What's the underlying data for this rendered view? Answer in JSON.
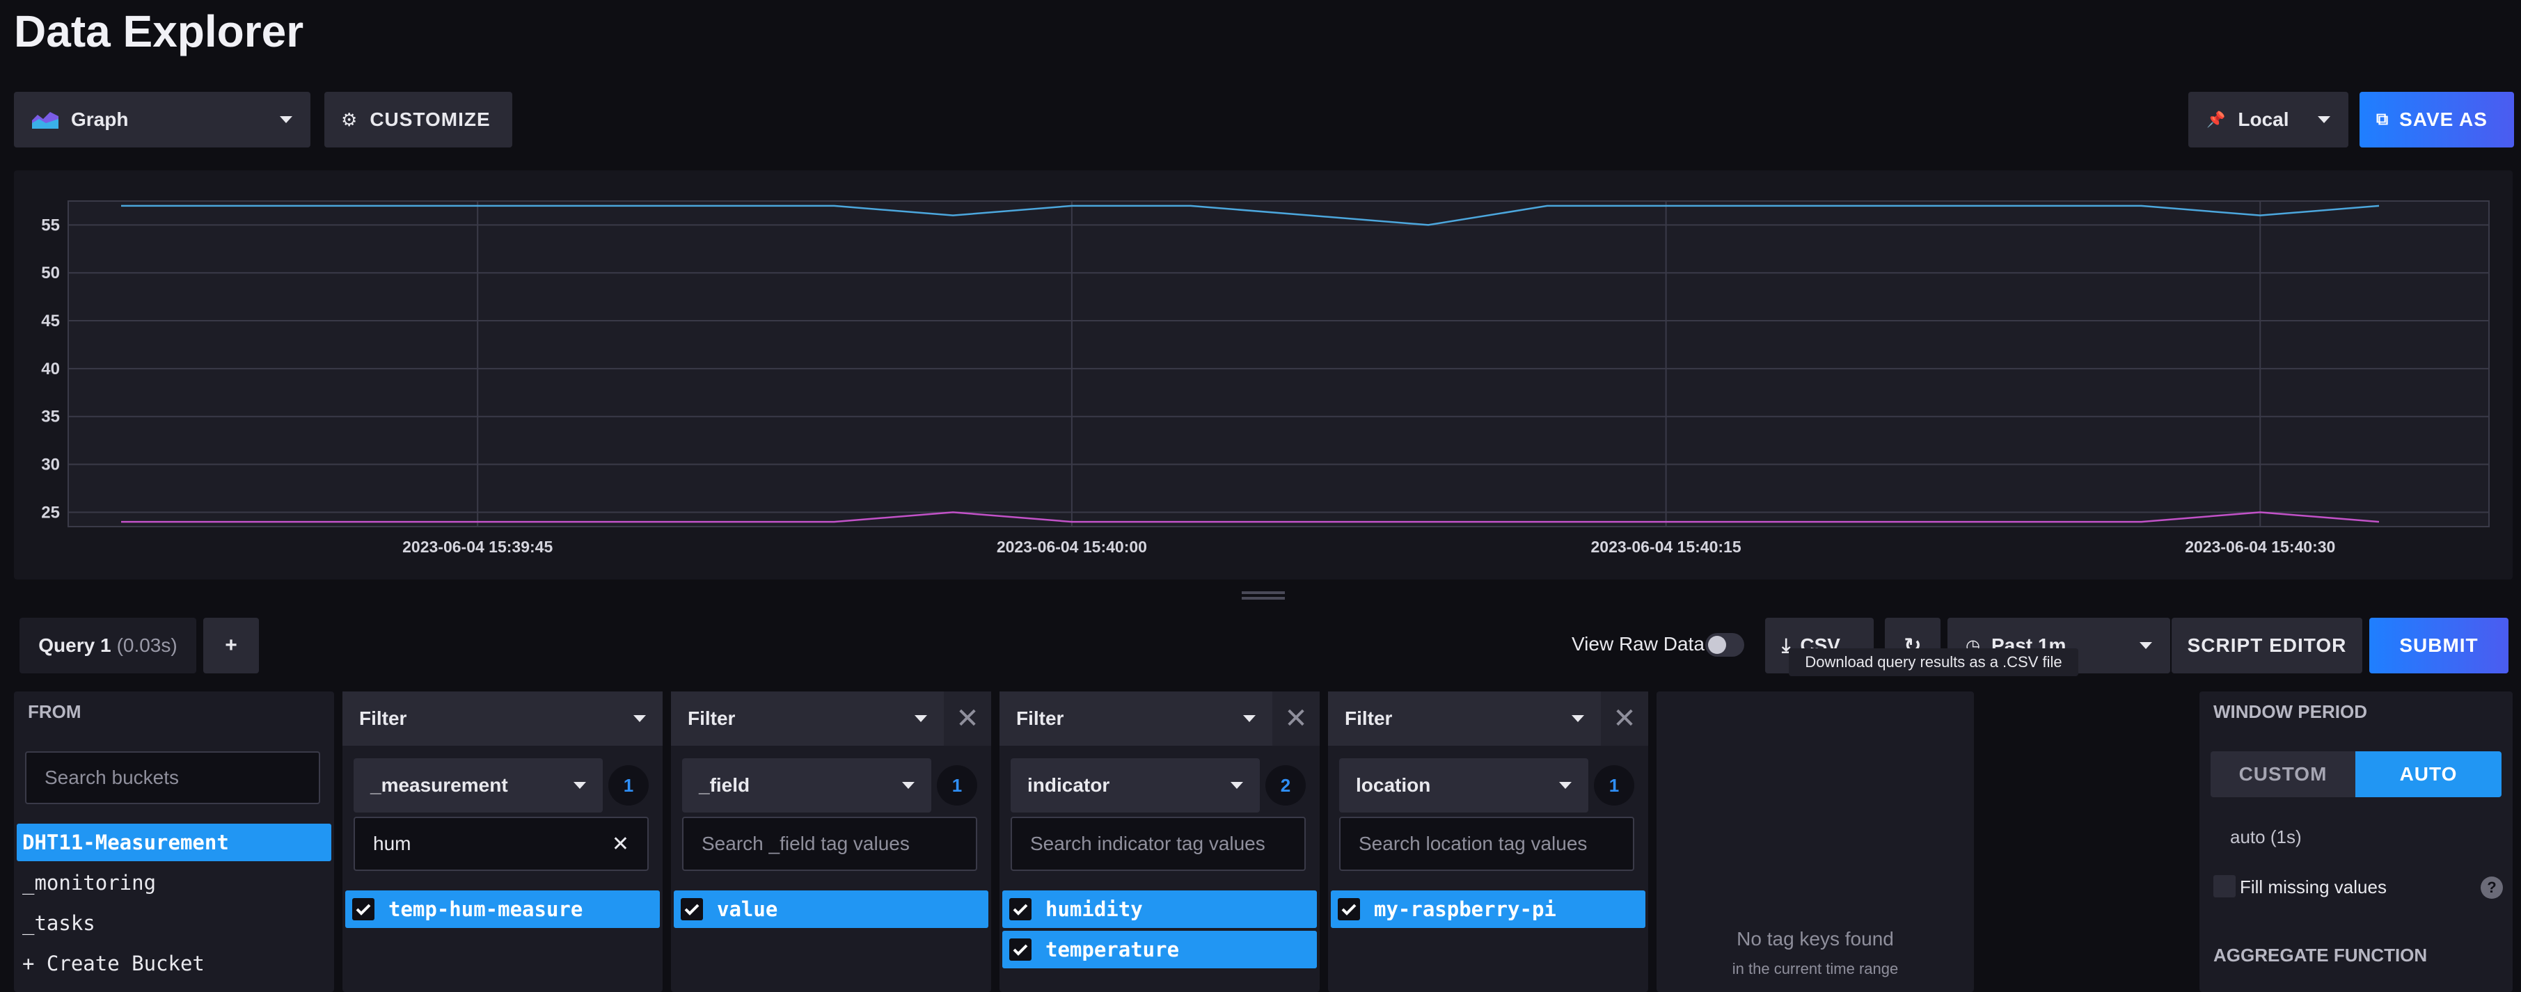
{
  "page": {
    "title": "Data Explorer"
  },
  "toolbar": {
    "view_type": "Graph",
    "customize_label": "CUSTOMIZE",
    "timezone": "Local",
    "save_as_label": "SAVE AS"
  },
  "chart_data": {
    "type": "line",
    "x": [
      "15:39:36",
      "15:39:39",
      "15:39:42",
      "15:39:45",
      "15:39:48",
      "15:39:51",
      "15:39:54",
      "15:39:57",
      "15:40:00",
      "15:40:03",
      "15:40:06",
      "15:40:09",
      "15:40:12",
      "15:40:15",
      "15:40:18",
      "15:40:21",
      "15:40:24",
      "15:40:27",
      "15:40:30",
      "15:40:33"
    ],
    "series": [
      {
        "color": "#4ca7dd",
        "values": [
          57,
          57,
          57,
          57,
          57,
          57,
          57,
          56,
          57,
          57,
          56,
          55,
          57,
          57,
          57,
          57,
          57,
          57,
          56,
          57
        ]
      },
      {
        "color": "#c252c8",
        "values": [
          24,
          24,
          24,
          24,
          24,
          24,
          24,
          25,
          24,
          24,
          24,
          24,
          24,
          24,
          24,
          24,
          24,
          24,
          25,
          24
        ]
      }
    ],
    "yticks": [
      "55",
      "50",
      "45",
      "40",
      "35",
      "30",
      "25"
    ],
    "xticks": [
      "2023-06-04 15:39:45",
      "2023-06-04 15:40:00",
      "2023-06-04 15:40:15",
      "2023-06-04 15:40:30"
    ],
    "ylim": [
      23.5,
      57.5
    ],
    "grid": true
  },
  "query": {
    "tab_label": "Query 1",
    "tab_time": "(0.03s)",
    "add_label": "+",
    "view_raw_label": "View Raw Data",
    "csv_label": "CSV",
    "csv_tooltip": "Download query results as a .CSV file",
    "time_range": "Past 1m",
    "script_editor_label": "SCRIPT EDITOR",
    "submit_label": "SUBMIT"
  },
  "from": {
    "header": "FROM",
    "search_placeholder": "Search buckets",
    "buckets": [
      "DHT11-Measurement",
      "_monitoring",
      "_tasks",
      "+ Create Bucket"
    ]
  },
  "filters": [
    {
      "header": "Filter",
      "key": "_measurement",
      "count": "1",
      "search_value": "hum",
      "search_placeholder": "",
      "values": [
        "temp-hum-measure"
      ]
    },
    {
      "header": "Filter",
      "key": "_field",
      "count": "1",
      "search_value": "",
      "search_placeholder": "Search _field tag values",
      "values": [
        "value"
      ]
    },
    {
      "header": "Filter",
      "key": "indicator",
      "count": "2",
      "search_value": "",
      "search_placeholder": "Search indicator tag values",
      "values": [
        "humidity",
        "temperature"
      ]
    },
    {
      "header": "Filter",
      "key": "location",
      "count": "1",
      "search_value": "",
      "search_placeholder": "Search location tag values",
      "values": [
        "my-raspberry-pi"
      ]
    }
  ],
  "empty_panel": {
    "title": "No tag keys found",
    "subtitle": "in the current time range"
  },
  "window": {
    "header": "WINDOW PERIOD",
    "custom_label": "CUSTOM",
    "auto_label": "AUTO",
    "auto_value": "auto (1s)",
    "fill_missing_label": "Fill missing values",
    "aggregate_header": "AGGREGATE FUNCTION"
  }
}
